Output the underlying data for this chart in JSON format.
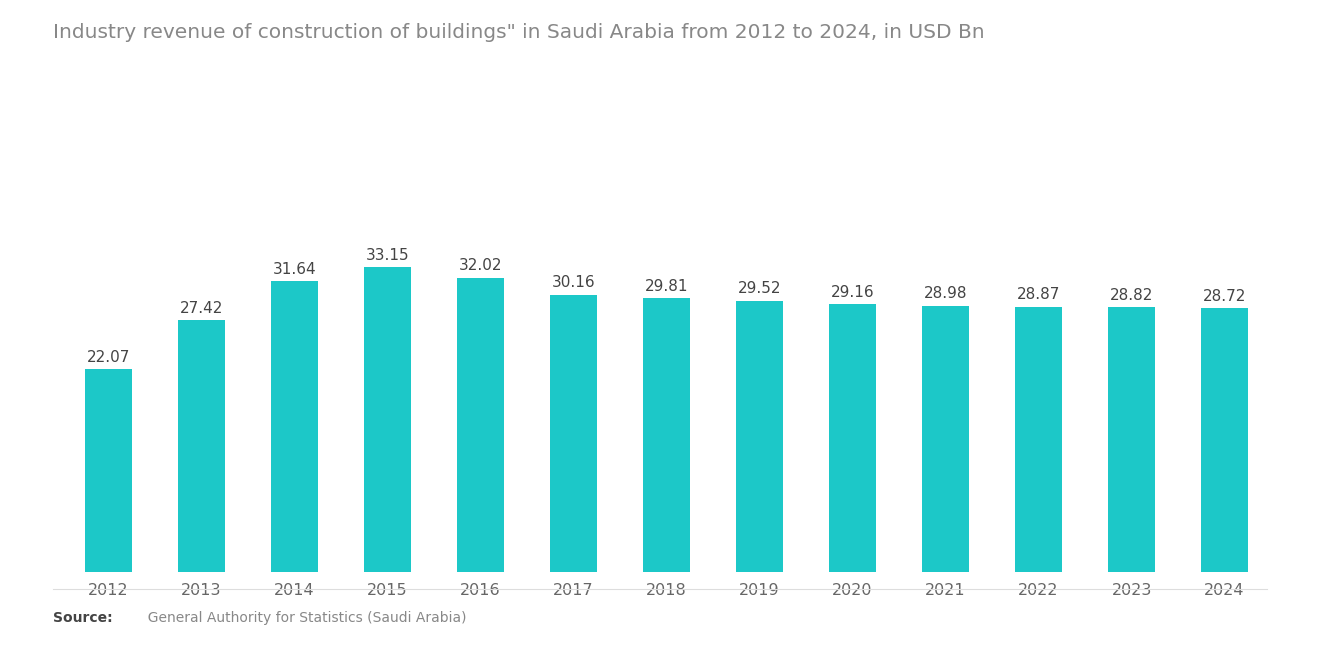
{
  "title": "Industry revenue of construction of buildings\" in Saudi Arabia from 2012 to 2024, in USD Bn",
  "years": [
    2012,
    2013,
    2014,
    2015,
    2016,
    2017,
    2018,
    2019,
    2020,
    2021,
    2022,
    2023,
    2024
  ],
  "values": [
    22.07,
    27.42,
    31.64,
    33.15,
    32.02,
    30.16,
    29.81,
    29.52,
    29.16,
    28.98,
    28.87,
    28.82,
    28.72
  ],
  "bar_color": "#1CC8C8",
  "background_color": "#ffffff",
  "title_color": "#888888",
  "label_color": "#444444",
  "tick_color": "#666666",
  "source_bold": "Source:",
  "source_rest": "  General Authority for Statistics (Saudi Arabia)",
  "ylim": [
    0,
    42
  ],
  "title_fontsize": 14.5,
  "label_fontsize": 11,
  "tick_fontsize": 11.5,
  "bar_width": 0.5
}
